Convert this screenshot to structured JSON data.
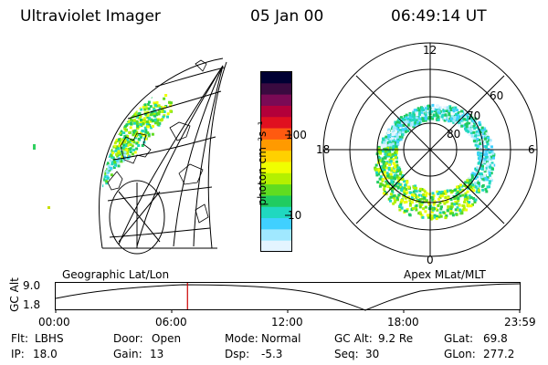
{
  "header": {
    "instrument": "Ultraviolet Imager",
    "date": "05 Jan 00",
    "time": "06:49:14 UT"
  },
  "colorbar": {
    "label": "photon cm⁻²s⁻¹",
    "ticks": [
      "100",
      "10"
    ],
    "colors": [
      "#000033",
      "#3a0a40",
      "#7a0a55",
      "#b3003a",
      "#e01020",
      "#ff5a10",
      "#ff9a00",
      "#ffd000",
      "#f0ff00",
      "#b4f000",
      "#60dc20",
      "#20cc60",
      "#20d8c0",
      "#40d0ff",
      "#a0e8ff",
      "#e4f4ff"
    ]
  },
  "panels": {
    "geographic_label": "Geographic Lat/Lon",
    "apex_label": "Apex MLat/MLT",
    "polar_labels": {
      "mlt_12": "12",
      "mlt_18": "18",
      "mlt_6": "6",
      "mlt_0": "0",
      "lat_60": "60",
      "lat_70": "70",
      "lat_80": "80"
    }
  },
  "altitude_plot": {
    "ylabel": "GC Alt",
    "yticks": [
      "9.0",
      "1.8"
    ],
    "xticks": [
      "00:00",
      "06:00",
      "12:00",
      "18:00",
      "23:59"
    ],
    "current_time_fraction": 0.284,
    "marker_color": "#cc0000"
  },
  "status": {
    "row1": [
      {
        "label": "Flt:",
        "value": "LBHS"
      },
      {
        "label": "Door:",
        "value": "Open"
      },
      {
        "label": "Mode:",
        "value": "Normal"
      },
      {
        "label": "GC Alt:",
        "value": "9.2 Re"
      },
      {
        "label": "GLat:",
        "value": "69.8"
      }
    ],
    "row2": [
      {
        "label": "IP:",
        "value": "18.0"
      },
      {
        "label": "Gain:",
        "value": "13"
      },
      {
        "label": "Dsp:",
        "value": "-5.3"
      },
      {
        "label": "Seq:",
        "value": "30"
      },
      {
        "label": "GLon:",
        "value": "277.2"
      }
    ]
  }
}
